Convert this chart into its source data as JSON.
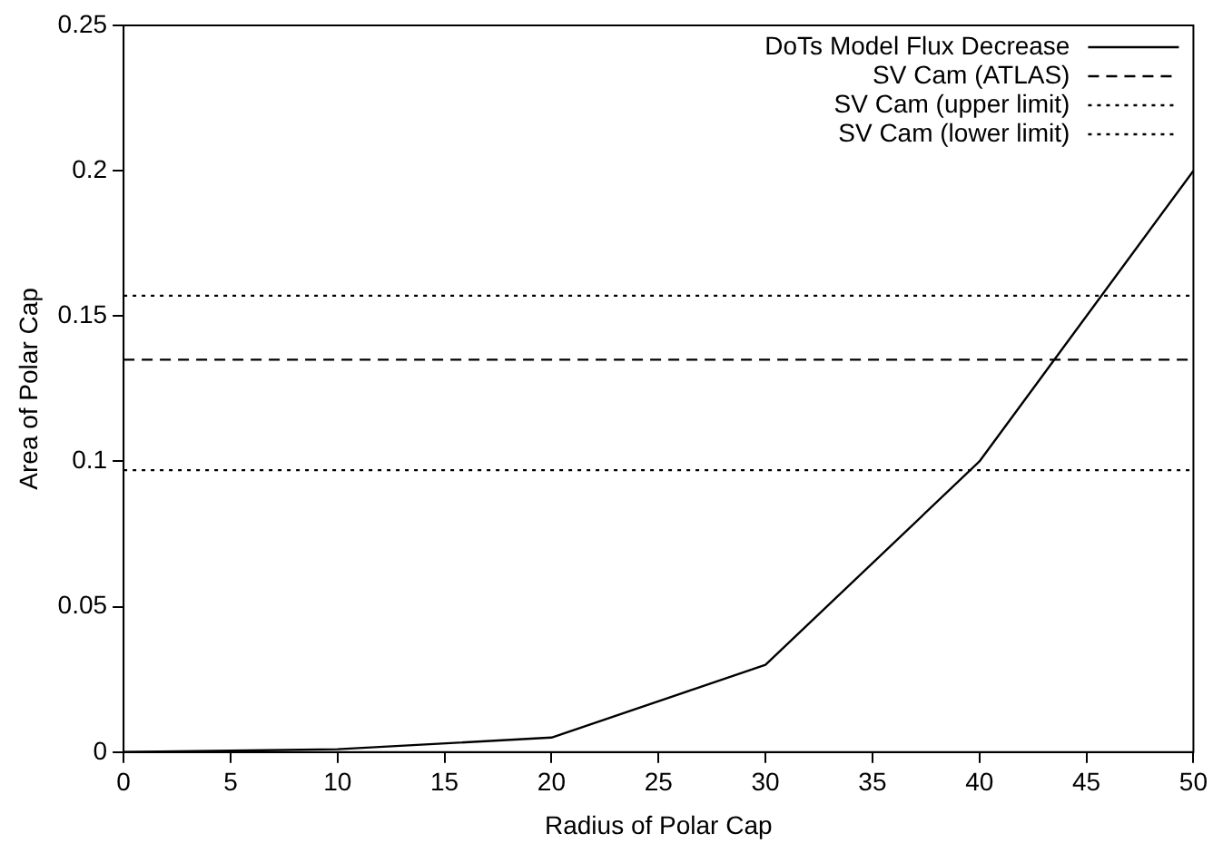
{
  "chart_data": {
    "type": "line",
    "xlabel": "Radius of Polar Cap",
    "ylabel": "Area of Polar Cap",
    "xlim": [
      0,
      50
    ],
    "xticks": [
      0,
      5,
      10,
      15,
      20,
      25,
      30,
      35,
      40,
      45,
      50
    ],
    "ylim": [
      0,
      0.25
    ],
    "yticks": [
      0,
      0.05,
      0.1,
      0.15,
      0.2,
      0.25
    ],
    "grid": false,
    "legend": "top right",
    "marker": "none",
    "series": [
      {
        "name": "DoTs Model Flux Decrease",
        "color": "#000000",
        "line_style": "solid",
        "x": [
          0,
          10,
          20,
          30,
          40,
          50
        ],
        "values": [
          0,
          0.001,
          0.005,
          0.03,
          0.1,
          0.2
        ]
      },
      {
        "name": "SV Cam (ATLAS)",
        "color": "#000000",
        "line_style": "dashed",
        "x": [
          0,
          50
        ],
        "values": [
          0.135,
          0.135
        ]
      },
      {
        "name": "SV Cam (upper limit)",
        "color": "#000000",
        "line_style": "dotted",
        "x": [
          0,
          50
        ],
        "values": [
          0.157,
          0.157
        ]
      },
      {
        "name": "SV Cam (lower limit)",
        "color": "#000000",
        "line_style": "dotted",
        "x": [
          0,
          50
        ],
        "values": [
          0.097,
          0.097
        ]
      }
    ]
  }
}
